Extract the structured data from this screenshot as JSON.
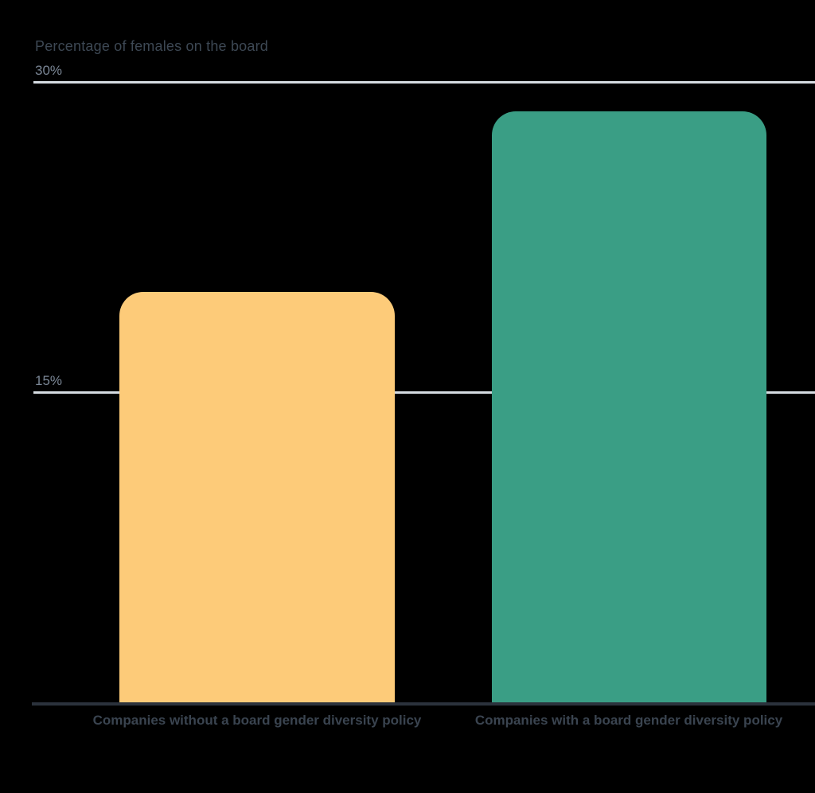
{
  "chart": {
    "title": "Percentage of females on the board",
    "colors": {
      "background": "#000000",
      "bar_without_policy": "#FDCB79",
      "bar_with_policy": "#3A9E85",
      "gridline": "#D6DCE2",
      "axis_line": "#2B323C",
      "title_text": "#3D4854",
      "tick_text": "#7A8695",
      "category_text": "#3A4450"
    }
  },
  "chart_data": {
    "type": "bar",
    "title": "Percentage of females on the board",
    "categories": [
      "Companies without a board gender diversity policy",
      "Companies with a board gender diversity policy"
    ],
    "values": [
      19.9,
      28.6
    ],
    "unit": "%",
    "ylim": [
      0,
      30
    ],
    "ytick_values": [
      15,
      30
    ],
    "ytick_labels": [
      "15%",
      "30%"
    ],
    "bar_colors": [
      "#FDCB79",
      "#3A9E85"
    ],
    "bar_corner_radius_px": 30,
    "gridlines": "horizontal lines at 15% and 30%, drawn behind bars",
    "legend": "none",
    "xlabel": "",
    "ylabel": "Percentage of females on the board"
  }
}
